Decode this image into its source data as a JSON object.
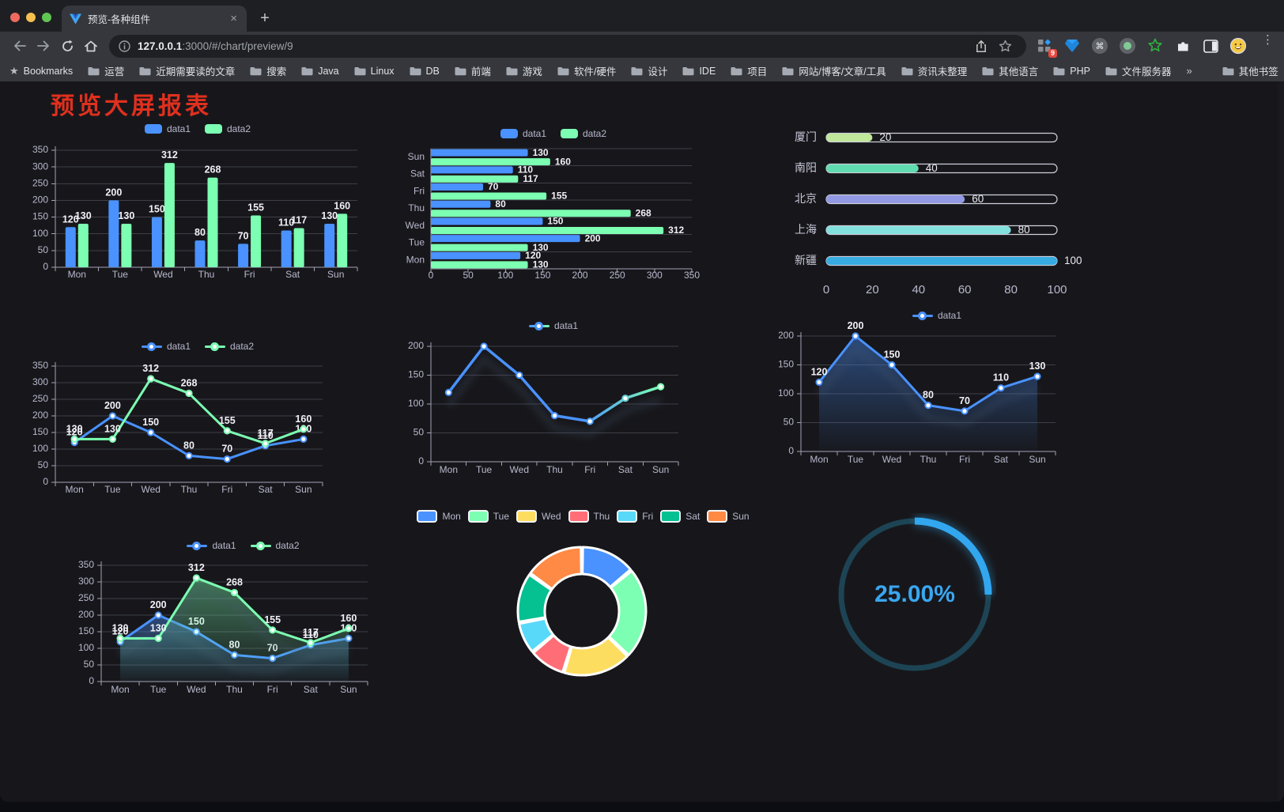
{
  "browser": {
    "tab_title": "预览-各种组件",
    "url_host": "127.0.0.1",
    "url_rest": ":3000/#/chart/preview/9",
    "extensions_badge": "9"
  },
  "bookmarks": {
    "label": "Bookmarks",
    "items": [
      "运营",
      "近期需要读的文章",
      "搜索",
      "Java",
      "Linux",
      "DB",
      "前端",
      "游戏",
      "软件/硬件",
      "设计",
      "IDE",
      "项目",
      "网站/博客/文章/工具",
      "资讯未整理",
      "其他语言",
      "PHP",
      "文件服务器"
    ],
    "overflow_label": "»",
    "other_label": "其他书签"
  },
  "page": {
    "title": "预览大屏报表",
    "title_color": "#e0301e",
    "background": "#17171b",
    "text_color": "#b9b8ce"
  },
  "chart_data": [
    {
      "id": "bar-grouped",
      "type": "bar",
      "categories": [
        "Mon",
        "Tue",
        "Wed",
        "Thu",
        "Fri",
        "Sat",
        "Sun"
      ],
      "series": [
        {
          "name": "data1",
          "color": "#4992ff",
          "values": [
            120,
            200,
            150,
            80,
            70,
            110,
            130
          ]
        },
        {
          "name": "data2",
          "color": "#7cffb2",
          "values": [
            130,
            130,
            312,
            268,
            155,
            117,
            160
          ]
        }
      ],
      "ylim": [
        0,
        350
      ],
      "ystep": 50,
      "legend": "rect",
      "value_labels": true,
      "grid": true,
      "legend_position": "top"
    },
    {
      "id": "bar-horizontal",
      "type": "hbar",
      "categories": [
        "Mon",
        "Tue",
        "Wed",
        "Thu",
        "Fri",
        "Sat",
        "Sun"
      ],
      "series": [
        {
          "name": "data1",
          "color": "#4992ff",
          "values": [
            120,
            200,
            150,
            80,
            70,
            110,
            130
          ]
        },
        {
          "name": "data2",
          "color": "#7cffb2",
          "values": [
            130,
            130,
            312,
            268,
            155,
            117,
            160
          ]
        }
      ],
      "xlim": [
        0,
        350
      ],
      "xstep": 50,
      "legend": "rect",
      "value_labels": true,
      "grid": true,
      "legend_position": "top"
    },
    {
      "id": "city-progress",
      "type": "progress",
      "items": [
        {
          "label": "厦门",
          "value": 20,
          "color": "#c0e79a"
        },
        {
          "label": "南阳",
          "value": 40,
          "color": "#61dcb0"
        },
        {
          "label": "北京",
          "value": 60,
          "color": "#9399e3"
        },
        {
          "label": "上海",
          "value": 80,
          "color": "#83e1dd"
        },
        {
          "label": "新疆",
          "value": 100,
          "color": "#36ace2"
        }
      ],
      "max": 100,
      "ticks": [
        0,
        20,
        40,
        60,
        80,
        100
      ]
    },
    {
      "id": "line-two-series",
      "type": "line",
      "categories": [
        "Mon",
        "Tue",
        "Wed",
        "Thu",
        "Fri",
        "Sat",
        "Sun"
      ],
      "series": [
        {
          "name": "data1",
          "color": "#4992ff",
          "values": [
            120,
            200,
            150,
            80,
            70,
            110,
            130
          ]
        },
        {
          "name": "data2",
          "color": "#7cffb2",
          "values": [
            130,
            130,
            312,
            268,
            155,
            117,
            160
          ]
        }
      ],
      "ylim": [
        0,
        350
      ],
      "ystep": 50,
      "legend": "line",
      "value_labels": true,
      "grid": true,
      "legend_position": "top"
    },
    {
      "id": "line-gradient",
      "type": "line",
      "categories": [
        "Mon",
        "Tue",
        "Wed",
        "Thu",
        "Fri",
        "Sat",
        "Sun"
      ],
      "series": [
        {
          "name": "data1",
          "color": "#4992ff",
          "color_end": "#7cffb2",
          "values": [
            120,
            200,
            150,
            80,
            70,
            110,
            130
          ]
        }
      ],
      "ylim": [
        0,
        200
      ],
      "ystep": 50,
      "legend": "line",
      "value_labels": false,
      "shadow": true,
      "grid": true,
      "legend_position": "top"
    },
    {
      "id": "area-single",
      "type": "line",
      "categories": [
        "Mon",
        "Tue",
        "Wed",
        "Thu",
        "Fri",
        "Sat",
        "Sun"
      ],
      "series": [
        {
          "name": "data1",
          "color": "#4992ff",
          "area": true,
          "values": [
            120,
            200,
            150,
            80,
            70,
            110,
            130
          ]
        }
      ],
      "ylim": [
        0,
        200
      ],
      "ystep": 50,
      "legend": "line",
      "value_labels": true,
      "shadow": true,
      "grid": true,
      "legend_position": "top"
    },
    {
      "id": "area-two-series",
      "type": "line",
      "categories": [
        "Mon",
        "Tue",
        "Wed",
        "Thu",
        "Fri",
        "Sat",
        "Sun"
      ],
      "series": [
        {
          "name": "data1",
          "color": "#4992ff",
          "area": true,
          "values": [
            120,
            200,
            150,
            80,
            70,
            110,
            130
          ]
        },
        {
          "name": "data2",
          "color": "#7cffb2",
          "area": true,
          "values": [
            130,
            130,
            312,
            268,
            155,
            117,
            160
          ]
        }
      ],
      "ylim": [
        0,
        350
      ],
      "ystep": 50,
      "legend": "line",
      "value_labels": true,
      "shadow": true,
      "grid": true,
      "legend_position": "top"
    },
    {
      "id": "donut",
      "type": "pie",
      "categories": [
        "Mon",
        "Tue",
        "Wed",
        "Thu",
        "Fri",
        "Sat",
        "Sun"
      ],
      "values": [
        120,
        200,
        150,
        80,
        70,
        110,
        130
      ],
      "colors": [
        "#4992ff",
        "#7cffb2",
        "#fddd60",
        "#ff6e76",
        "#58d9f9",
        "#05c091",
        "#ff8a45"
      ],
      "legend": "rect-border",
      "legend_position": "top",
      "inner_radius_ratio": 0.58
    },
    {
      "id": "gauge",
      "type": "gauge",
      "value": 25,
      "max": 100,
      "label": "25.00%",
      "color": "#32a7f0",
      "track_color": "#1d4454"
    }
  ]
}
